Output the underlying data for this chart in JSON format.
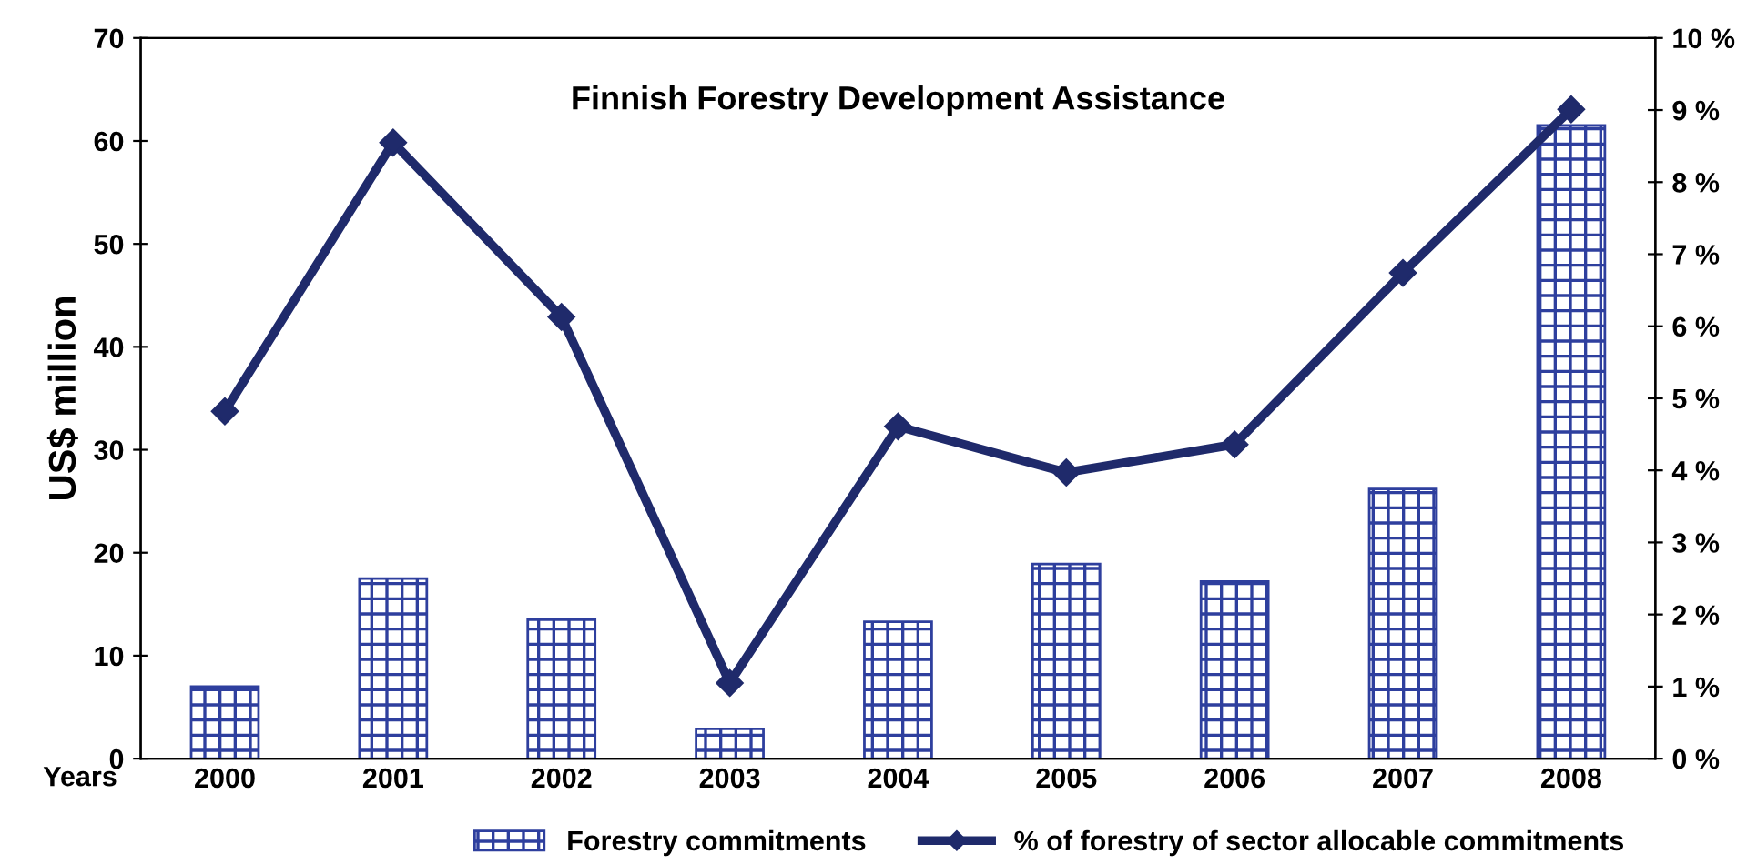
{
  "chart_data": {
    "type": "bar",
    "title": "Finnish Forestry Development Assistance",
    "xlabel": "Years",
    "ylabel": "US$ million",
    "categories": [
      "2000",
      "2001",
      "2002",
      "2003",
      "2004",
      "2005",
      "2006",
      "2007",
      "2008"
    ],
    "series": [
      {
        "name": "Forestry commitments",
        "color": "#2e3f9e",
        "values": [
          7.0,
          17.5,
          13.5,
          2.9,
          13.3,
          18.9,
          17.2,
          26.2,
          61.5
        ]
      },
      {
        "name": "% of forestry of sector allocable commitments",
        "type": "line",
        "axis": "y2",
        "color": "#1f2a6b",
        "values": [
          4.82,
          8.55,
          6.13,
          1.05,
          4.61,
          3.97,
          4.36,
          6.74,
          9.01
        ]
      }
    ],
    "ylim": [
      0,
      70
    ],
    "yticks": [
      0,
      10,
      20,
      30,
      40,
      50,
      60,
      70
    ],
    "y2lim": [
      0,
      10
    ],
    "y2ticks": [
      {
        "value": 0,
        "label": "0 %"
      },
      {
        "value": 1,
        "label": "1 %"
      },
      {
        "value": 2,
        "label": "2 %"
      },
      {
        "value": 3,
        "label": "3 %"
      },
      {
        "value": 4,
        "label": "4 %"
      },
      {
        "value": 5,
        "label": "5 %"
      },
      {
        "value": 6,
        "label": "6 %"
      },
      {
        "value": 7,
        "label": "7 %"
      },
      {
        "value": 8,
        "label": "8 %"
      },
      {
        "value": 9,
        "label": "9 %"
      },
      {
        "value": 10,
        "label": "10 %"
      }
    ],
    "marker": "diamond",
    "grid": false,
    "legend": "bottom"
  }
}
